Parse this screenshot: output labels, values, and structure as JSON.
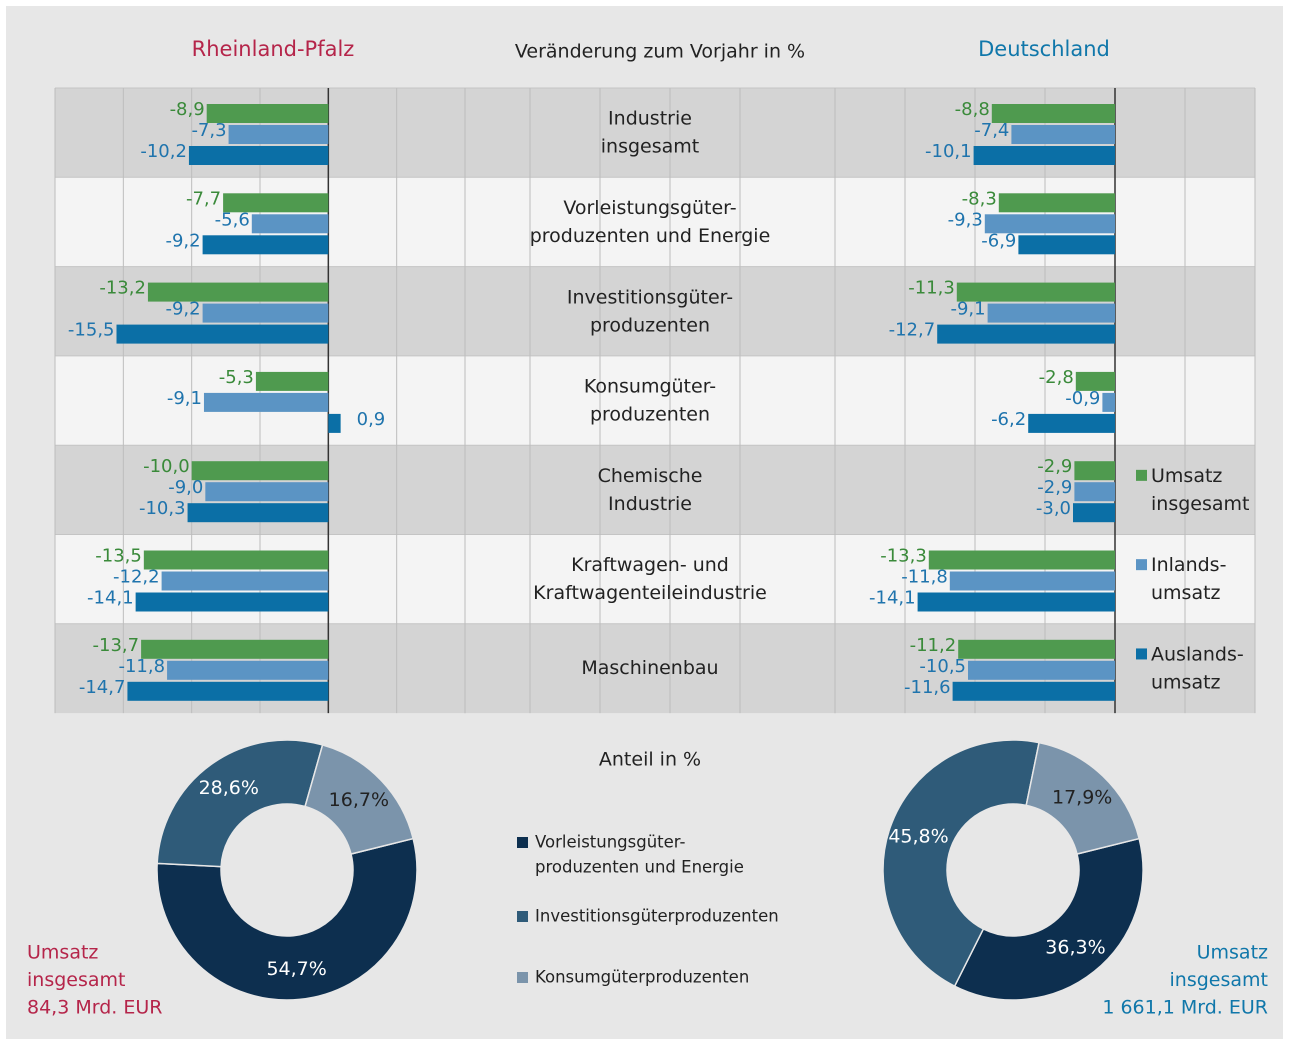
{
  "chart_data": [
    {
      "type": "bar",
      "title": "Rheinland-Pfalz",
      "subtitle": "Veränderung zum Vorjahr in %",
      "categories": [
        "Industrie\ninsgesamt",
        "Vorleistungsgüter-\nproduzenten und Energie",
        "Investitionsgüter-\nproduzenten",
        "Konsumgüter-\nproduzenten",
        "Chemische\nIndustrie",
        "Kraftwagen- und\nKraftwagenteileindustrie",
        "Maschinenbau"
      ],
      "xlim": [
        -20,
        10
      ],
      "xticks": [
        -20,
        -15,
        -10,
        -5,
        0,
        5,
        10
      ],
      "grid": true,
      "series": [
        {
          "name": "Umsatz\ninsgesamt",
          "color": "#4f9a4f",
          "label_color": "#3a8a3a",
          "values": [
            -8.9,
            -7.7,
            -13.2,
            -5.3,
            -10.0,
            -13.5,
            -13.7
          ],
          "value_labels": [
            "-8,9",
            "-7,7",
            "-13,2",
            "-5,3",
            "-10,0",
            "-13,5",
            "-13,7"
          ]
        },
        {
          "name": "Inlands-\numsatz",
          "color": "#5b94c4",
          "label_color": "#1f74ad",
          "values": [
            -7.3,
            -5.6,
            -9.2,
            -9.1,
            -9.0,
            -12.2,
            -11.8
          ],
          "value_labels": [
            "-7,3",
            "-5,6",
            "-9,2",
            "-9,1",
            "-9,0",
            "-12,2",
            "-11,8"
          ]
        },
        {
          "name": "Auslands-\numsatz",
          "color": "#0b6fa6",
          "label_color": "#1f74ad",
          "values": [
            -10.2,
            -9.2,
            -15.5,
            0.9,
            -10.3,
            -14.1,
            -14.7
          ],
          "value_labels": [
            "-10,2",
            "-9,2",
            "-15,5",
            "0,9",
            "-10,3",
            "-14,1",
            "-14,7"
          ]
        }
      ]
    },
    {
      "type": "bar",
      "title": "Deutschland",
      "legend": "right",
      "xlim": [
        -20,
        10
      ],
      "xticks": [
        -20,
        -15,
        -10,
        -5,
        0,
        5,
        10
      ],
      "grid": true,
      "series": [
        {
          "name": "Umsatz\ninsgesamt",
          "color": "#4f9a4f",
          "label_color": "#3a8a3a",
          "values": [
            -8.8,
            -8.3,
            -11.3,
            -2.8,
            -2.9,
            -13.3,
            -11.2
          ],
          "value_labels": [
            "-8,8",
            "-8,3",
            "-11,3",
            "-2,8",
            "-2,9",
            "-13,3",
            "-11,2"
          ]
        },
        {
          "name": "Inlands-\numsatz",
          "color": "#5b94c4",
          "label_color": "#1f74ad",
          "values": [
            -7.4,
            -9.3,
            -9.1,
            -0.9,
            -2.9,
            -11.8,
            -10.5
          ],
          "value_labels": [
            "-7,4",
            "-9,3",
            "-9,1",
            "-0,9",
            "-2,9",
            "-11,8",
            "-10,5"
          ]
        },
        {
          "name": "Auslands-\numsatz",
          "color": "#0b6fa6",
          "label_color": "#1f74ad",
          "values": [
            -10.1,
            -6.9,
            -12.7,
            -6.2,
            -3.0,
            -14.1,
            -11.6
          ],
          "value_labels": [
            "-10,1",
            "-6,9",
            "-12,7",
            "-6,2",
            "-3,0",
            "-14,1",
            "-11,6"
          ]
        }
      ]
    },
    {
      "type": "donut",
      "subtitle": "Anteil in %",
      "categories": [
        "Vorleistungsgüter-\nproduzenten und Energie",
        "Investitionsgüterproduzenten",
        "Konsumgüterproduzenten"
      ],
      "values": [
        54.7,
        28.6,
        16.7
      ],
      "value_labels": [
        "54,7%",
        "28,6%",
        "16,7%"
      ],
      "colors": [
        "#0d2f4f",
        "#2f5b79",
        "#7b94ab"
      ],
      "annotation": "Umsatz\ninsgesamt\n84,3 Mrd. EUR"
    },
    {
      "type": "donut",
      "values": [
        36.3,
        45.8,
        17.9
      ],
      "value_labels": [
        "36,3%",
        "45,8%",
        "17,9%"
      ],
      "colors": [
        "#0d2f4f",
        "#2f5b79",
        "#7b94ab"
      ],
      "annotation": "Umsatz\ninsgesamt\n1 661,1 Mrd. EUR"
    }
  ]
}
